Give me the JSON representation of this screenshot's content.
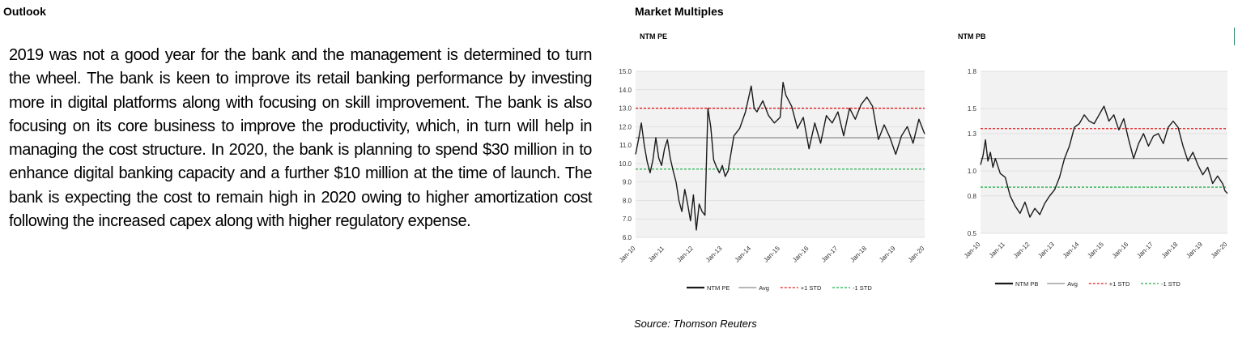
{
  "outlook": {
    "heading": "Outlook",
    "paragraph": "2019 was not a good year for the bank and the management is determined to turn the wheel. The bank is keen to improve its retail banking performance by investing more in digital platforms along with focusing on skill improvement. The bank is also focusing on its core business to improve the productivity, which, in turn will help in managing the cost structure. In 2020, the bank is planning to spend $30 million in to enhance digital banking capacity and a further $10 million at the time of launch. The bank is expecting the cost to remain high in 2020 owing to higher amortization cost following the increased capex along with higher regulatory expense."
  },
  "market": {
    "heading": "Market Multiples",
    "source": "Source: Thomson Reuters"
  },
  "colors": {
    "series": "#1a1a1a",
    "avg": "#8c8c8c",
    "plus_std": "#e31a1c",
    "minus_std": "#22b04b",
    "grid": "#d9d9d9",
    "plot_bg": "#f2f2f2"
  },
  "chart_data": [
    {
      "type": "line",
      "title": "NTM PE",
      "x_tick_labels": [
        "Jan-10",
        "Jan-11",
        "Jan-12",
        "Jan-13",
        "Jan-14",
        "Jan-15",
        "Jan-16",
        "Jan-17",
        "Jan-18",
        "Jan-19",
        "Jan-20"
      ],
      "ylim": [
        6.0,
        15.0
      ],
      "y_ticks": [
        "6.0",
        "7.0",
        "8.0",
        "9.0",
        "10.0",
        "11.0",
        "12.0",
        "13.0",
        "14.0",
        "15.0"
      ],
      "grid": "horizontal",
      "legend_position": "bottom",
      "reference_lines": [
        {
          "name": "Avg",
          "value": 11.4
        },
        {
          "name": "+1 STD",
          "value": 13.0
        },
        {
          "name": "-1 STD",
          "value": 9.7
        }
      ],
      "series": [
        {
          "name": "NTM PE",
          "x": [
            2010.0,
            2010.1,
            2010.2,
            2010.3,
            2010.4,
            2010.5,
            2010.6,
            2010.7,
            2010.8,
            2010.9,
            2011.0,
            2011.1,
            2011.2,
            2011.3,
            2011.4,
            2011.5,
            2011.6,
            2011.7,
            2011.8,
            2011.9,
            2012.0,
            2012.1,
            2012.2,
            2012.3,
            2012.4,
            2012.5,
            2012.6,
            2012.7,
            2012.8,
            2012.9,
            2013.0,
            2013.1,
            2013.2,
            2013.4,
            2013.6,
            2013.8,
            2014.0,
            2014.1,
            2014.2,
            2014.4,
            2014.6,
            2014.8,
            2015.0,
            2015.1,
            2015.2,
            2015.4,
            2015.6,
            2015.8,
            2016.0,
            2016.2,
            2016.4,
            2016.6,
            2016.8,
            2017.0,
            2017.2,
            2017.4,
            2017.6,
            2017.8,
            2018.0,
            2018.2,
            2018.4,
            2018.6,
            2018.8,
            2019.0,
            2019.2,
            2019.4,
            2019.6,
            2019.8,
            2020.0
          ],
          "y": [
            10.5,
            11.3,
            12.2,
            11.0,
            10.1,
            9.5,
            10.2,
            11.4,
            10.3,
            9.9,
            10.8,
            11.3,
            10.3,
            9.6,
            9.0,
            8.0,
            7.4,
            8.6,
            7.8,
            6.9,
            8.3,
            6.4,
            7.8,
            7.4,
            7.2,
            13.0,
            12.0,
            10.2,
            9.8,
            9.5,
            9.9,
            9.3,
            9.6,
            11.5,
            11.9,
            12.8,
            14.2,
            13.0,
            12.8,
            13.4,
            12.6,
            12.2,
            12.5,
            14.4,
            13.7,
            13.1,
            11.9,
            12.5,
            10.8,
            12.2,
            11.1,
            12.6,
            12.2,
            12.8,
            11.5,
            13.0,
            12.4,
            13.2,
            13.6,
            13.1,
            11.3,
            12.1,
            11.4,
            10.5,
            11.5,
            12.0,
            11.1,
            12.4,
            11.6
          ]
        }
      ]
    },
    {
      "type": "line",
      "title": "NTM PB",
      "x_tick_labels": [
        "Jan-10",
        "Jan-11",
        "Jan-12",
        "Jan-13",
        "Jan-14",
        "Jan-15",
        "Jan-16",
        "Jan-17",
        "Jan-18",
        "Jan-19",
        "Jan-20"
      ],
      "ylim": [
        0.5,
        1.8
      ],
      "y_ticks": [
        "0.5",
        "0.8",
        "1.0",
        "1.3",
        "1.5",
        "1.8"
      ],
      "grid": "horizontal",
      "legend_position": "bottom",
      "reference_lines": [
        {
          "name": "Avg",
          "value": 1.1
        },
        {
          "name": "+1 STD",
          "value": 1.34
        },
        {
          "name": "-1 STD",
          "value": 0.87
        }
      ],
      "series": [
        {
          "name": "NTM PB",
          "x": [
            2010.0,
            2010.1,
            2010.2,
            2010.3,
            2010.4,
            2010.5,
            2010.6,
            2010.8,
            2011.0,
            2011.2,
            2011.4,
            2011.6,
            2011.8,
            2012.0,
            2012.2,
            2012.4,
            2012.6,
            2012.8,
            2013.0,
            2013.2,
            2013.4,
            2013.6,
            2013.8,
            2014.0,
            2014.2,
            2014.4,
            2014.6,
            2014.8,
            2015.0,
            2015.2,
            2015.4,
            2015.6,
            2015.8,
            2016.0,
            2016.2,
            2016.4,
            2016.6,
            2016.8,
            2017.0,
            2017.2,
            2017.4,
            2017.6,
            2017.8,
            2018.0,
            2018.2,
            2018.4,
            2018.6,
            2018.8,
            2019.0,
            2019.2,
            2019.4,
            2019.6,
            2019.8,
            2019.9,
            2020.0
          ],
          "y": [
            1.05,
            1.12,
            1.25,
            1.08,
            1.15,
            1.03,
            1.1,
            0.98,
            0.95,
            0.8,
            0.72,
            0.66,
            0.75,
            0.63,
            0.7,
            0.65,
            0.74,
            0.8,
            0.85,
            0.95,
            1.1,
            1.2,
            1.35,
            1.38,
            1.45,
            1.4,
            1.38,
            1.45,
            1.52,
            1.4,
            1.45,
            1.33,
            1.42,
            1.25,
            1.1,
            1.22,
            1.3,
            1.2,
            1.28,
            1.3,
            1.22,
            1.35,
            1.4,
            1.35,
            1.2,
            1.08,
            1.15,
            1.05,
            0.97,
            1.03,
            0.9,
            0.96,
            0.9,
            0.84,
            0.82
          ]
        }
      ]
    }
  ]
}
